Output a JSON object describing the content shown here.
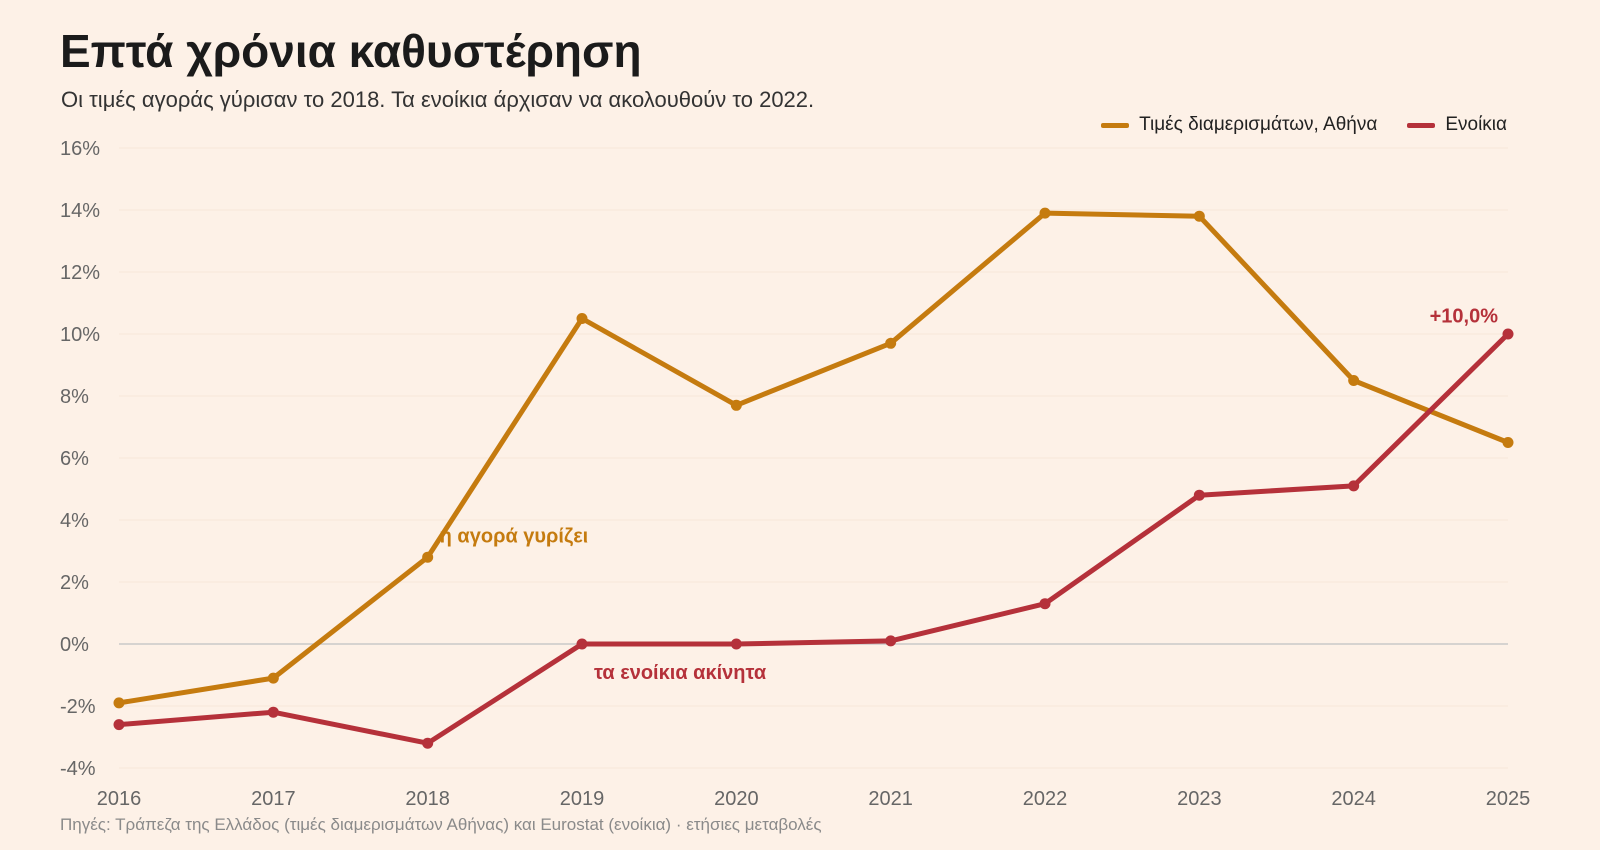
{
  "header": {
    "title": "Επτά χρόνια καθυστέρηση",
    "subtitle": "Οι τιμές αγοράς γύρισαν το 2018. Τα ενοίκια άρχισαν να ακολουθούν το 2022."
  },
  "source": "Πηγές: Τράπεζα της Ελλάδος (τιμές διαμερισμάτων Αθήνας) και Eurostat (ενοίκια) · ετήσιες μεταβολές",
  "chart_data": {
    "type": "line",
    "title": "Επτά χρόνια καθυστέρηση",
    "subtitle": "Οι τιμές αγοράς γύρισαν το 2018. Τα ενοίκια άρχισαν να ακολουθούν το 2022.",
    "x": [
      2016,
      2017,
      2018,
      2019,
      2020,
      2021,
      2022,
      2023,
      2024,
      2025
    ],
    "ylim": [
      -4,
      16
    ],
    "yticks": [
      -4,
      -2,
      0,
      2,
      4,
      6,
      8,
      10,
      12,
      14,
      16
    ],
    "ytick_labels": [
      "-4%",
      "-2%",
      "0%",
      "2%",
      "4%",
      "6%",
      "8%",
      "10%",
      "12%",
      "14%",
      "16%"
    ],
    "grid": true,
    "legend_position": "top-right",
    "series": [
      {
        "name": "Τιμές διαμερισμάτων, Αθήνα",
        "color": "#c57b0f",
        "values": [
          -1.9,
          -1.1,
          2.8,
          10.5,
          7.7,
          9.7,
          13.9,
          13.8,
          8.5,
          6.5
        ]
      },
      {
        "name": "Ενοίκια",
        "color": "#b5313a",
        "values": [
          -2.6,
          -2.2,
          -3.2,
          0.0,
          0.0,
          0.1,
          1.3,
          4.8,
          5.1,
          10.0
        ]
      }
    ],
    "annotations": [
      {
        "text": "η αγορά γυρίζει",
        "series": 0,
        "x": 2018,
        "y": 3.5,
        "color": "#c57b0f"
      },
      {
        "text": "τα ενοίκια ακίνητα",
        "series": 1,
        "x": 2019,
        "y": -0.9,
        "color": "#b5313a"
      },
      {
        "text": "+10,0%",
        "series": 1,
        "x": 2025,
        "y": 10.6,
        "color": "#b5313a"
      }
    ]
  }
}
